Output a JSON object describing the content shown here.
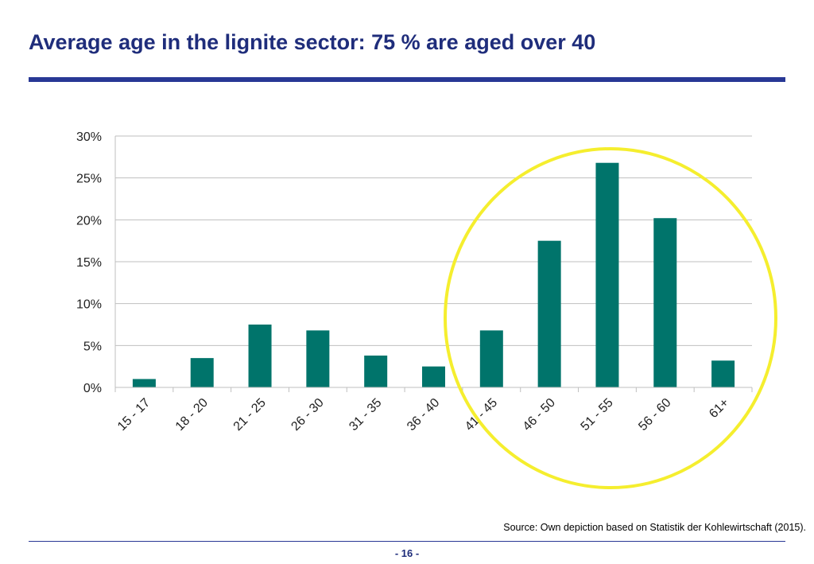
{
  "slide": {
    "title": "Average age in the lignite sector: 75 % are aged over 40",
    "source": "Source: Own depiction based on Statistik der Kohlewirtschaft (2015).",
    "page_number": "- 16 -"
  },
  "colors": {
    "title": "#1f2d7b",
    "rule": "#283895",
    "bar": "#00746b",
    "highlight_circle": "#f5ee2e",
    "grid": "#bfbfbf"
  },
  "chart_data": {
    "type": "bar",
    "title": "",
    "xlabel": "",
    "ylabel": "",
    "categories": [
      "15 - 17",
      "18 - 20",
      "21 - 25",
      "26 - 30",
      "31 - 35",
      "36 - 40",
      "41 - 45",
      "46 - 50",
      "51 - 55",
      "56 - 60",
      "61+"
    ],
    "values": [
      1.0,
      3.5,
      7.5,
      6.8,
      3.8,
      2.5,
      6.8,
      17.5,
      26.8,
      20.2,
      3.2
    ],
    "ylim": [
      0,
      30
    ],
    "yticks": [
      0,
      5,
      10,
      15,
      20,
      25,
      30
    ],
    "ytick_labels": [
      "0%",
      "5%",
      "10%",
      "15%",
      "20%",
      "25%",
      "30%"
    ],
    "grid": true,
    "legend": "none",
    "annotation": "circle highlighting the age groups 41 - 45 through 61+"
  }
}
